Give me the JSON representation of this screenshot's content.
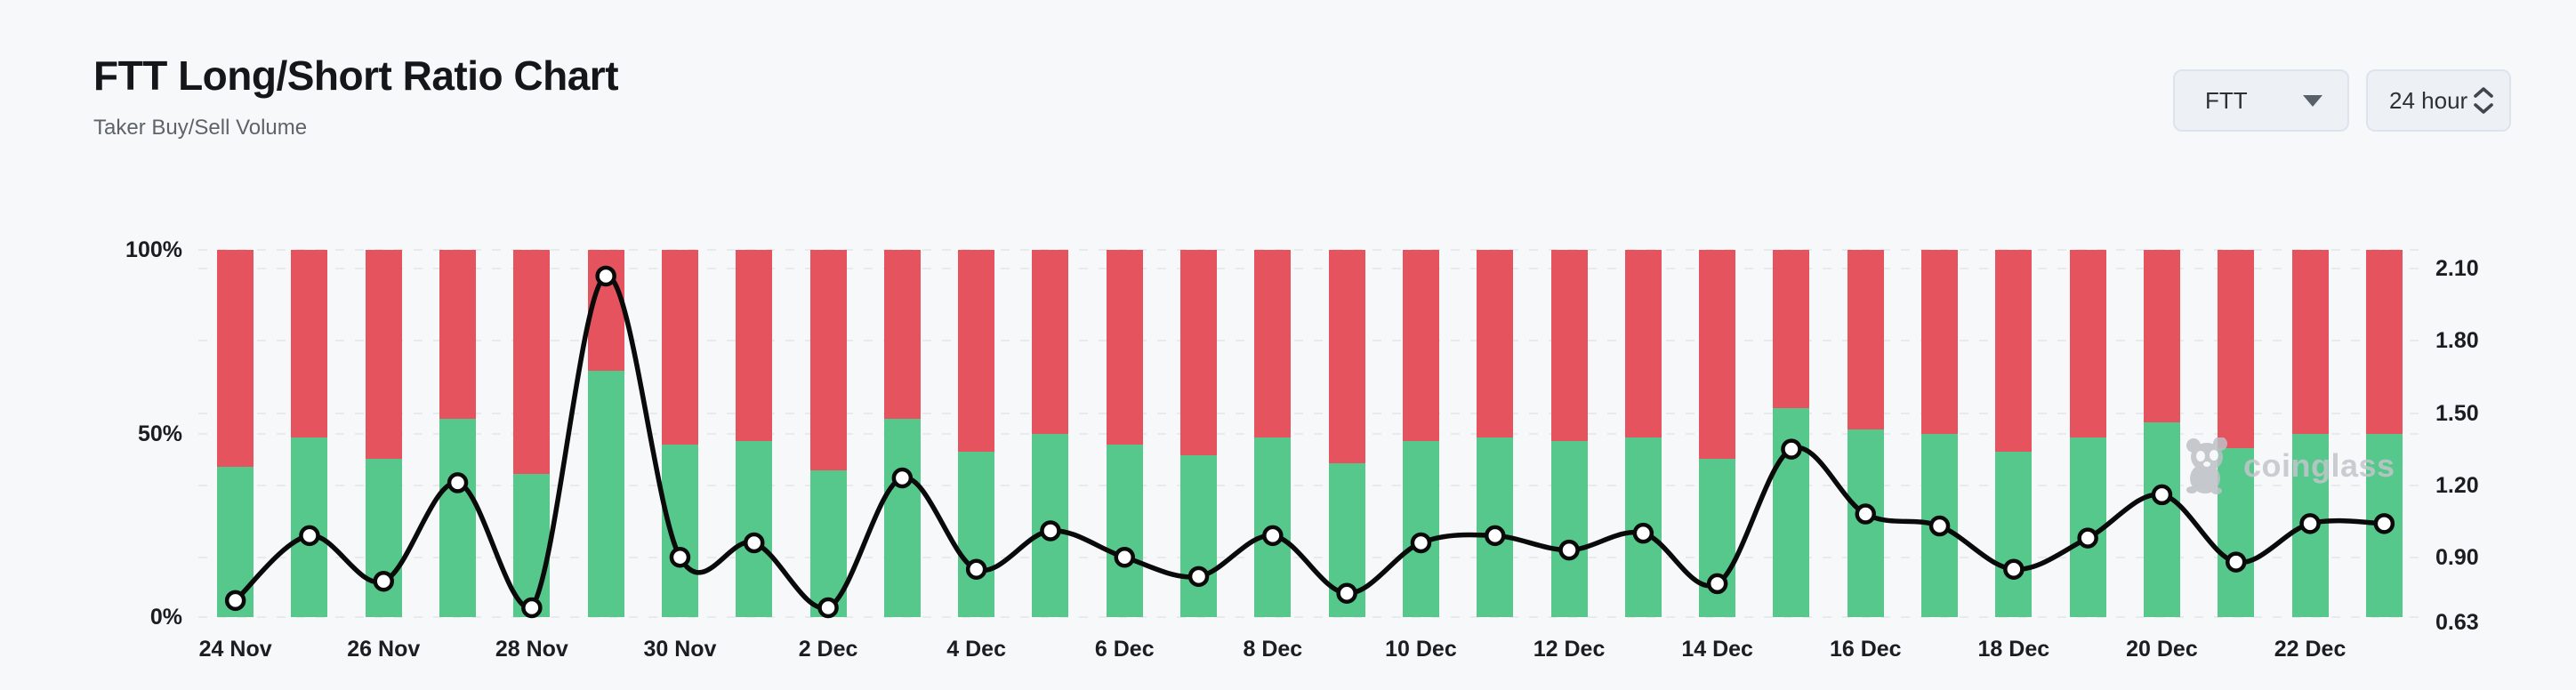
{
  "header": {
    "title": "FTT Long/Short Ratio Chart",
    "subtitle": "Taker Buy/Sell Volume"
  },
  "controls": {
    "symbol_select": {
      "value": "FTT"
    },
    "interval_select": {
      "value": "24 hour"
    }
  },
  "watermark": {
    "text": "coinglass"
  },
  "colors": {
    "buy_green": "#57c88b",
    "sell_red": "#e5545e",
    "line_black": "#0a0a0a",
    "marker_fill": "#ffffff",
    "background": "#f7f8f9",
    "watermark_gray": "#c2c5ca"
  },
  "chart_data": {
    "type": "bar",
    "subtype": "stacked-percent-bars-with-line-overlay",
    "categories": [
      "24 Nov",
      "25 Nov",
      "26 Nov",
      "27 Nov",
      "28 Nov",
      "29 Nov",
      "30 Nov",
      "1 Dec",
      "2 Dec",
      "3 Dec",
      "4 Dec",
      "5 Dec",
      "6 Dec",
      "7 Dec",
      "8 Dec",
      "9 Dec",
      "10 Dec",
      "11 Dec",
      "12 Dec",
      "13 Dec",
      "14 Dec",
      "15 Dec",
      "16 Dec",
      "17 Dec",
      "18 Dec",
      "19 Dec",
      "20 Dec",
      "21 Dec",
      "22 Dec",
      "23 Dec"
    ],
    "series": [
      {
        "name": "Taker Buy %",
        "type": "bar",
        "stack": "bottom",
        "color": "#57c88b",
        "values": [
          41,
          49,
          43,
          54,
          39,
          67,
          47,
          48,
          40,
          54,
          45,
          50,
          47,
          44,
          49,
          42,
          48,
          49,
          48,
          49,
          43,
          57,
          51,
          50,
          45,
          49,
          53,
          46,
          50,
          50
        ]
      },
      {
        "name": "Taker Sell %",
        "type": "bar",
        "stack": "top",
        "color": "#e5545e",
        "values": [
          59,
          51,
          57,
          46,
          61,
          33,
          53,
          52,
          60,
          46,
          55,
          50,
          53,
          56,
          51,
          58,
          52,
          51,
          52,
          51,
          57,
          43,
          49,
          50,
          55,
          51,
          47,
          54,
          50,
          50
        ]
      },
      {
        "name": "Long/Short Ratio",
        "type": "line",
        "color": "#0a0a0a",
        "values": [
          0.72,
          0.99,
          0.8,
          1.21,
          0.69,
          2.07,
          0.9,
          0.96,
          0.69,
          1.23,
          0.85,
          1.01,
          0.9,
          0.82,
          0.99,
          0.75,
          0.96,
          0.99,
          0.93,
          1.0,
          0.79,
          1.35,
          1.08,
          1.03,
          0.85,
          0.98,
          1.16,
          0.88,
          1.04,
          1.04
        ]
      }
    ],
    "left_axis": {
      "ticks": [
        {
          "label": "100%",
          "pct": 100
        },
        {
          "label": "50%",
          "pct": 50
        },
        {
          "label": "0%",
          "pct": 0
        }
      ],
      "min": 0,
      "max": 100
    },
    "right_axis": {
      "ticks": [
        {
          "label": "2.10",
          "value": 2.1
        },
        {
          "label": "1.80",
          "value": 1.8
        },
        {
          "label": "1.50",
          "value": 1.5
        },
        {
          "label": "1.20",
          "value": 1.2
        },
        {
          "label": "0.90",
          "value": 0.9
        },
        {
          "label": "0.63",
          "value": 0.63
        }
      ],
      "top_value": 2.179,
      "bottom_value": 0.651
    },
    "x_ticks": [
      {
        "label": "24 Nov",
        "bar_index": 0
      },
      {
        "label": "26 Nov",
        "bar_index": 2
      },
      {
        "label": "28 Nov",
        "bar_index": 4
      },
      {
        "label": "30 Nov",
        "bar_index": 6
      },
      {
        "label": "2 Dec",
        "bar_index": 8
      },
      {
        "label": "4 Dec",
        "bar_index": 10
      },
      {
        "label": "6 Dec",
        "bar_index": 12
      },
      {
        "label": "8 Dec",
        "bar_index": 14
      },
      {
        "label": "10 Dec",
        "bar_index": 16
      },
      {
        "label": "12 Dec",
        "bar_index": 18
      },
      {
        "label": "14 Dec",
        "bar_index": 20
      },
      {
        "label": "16 Dec",
        "bar_index": 22
      },
      {
        "label": "18 Dec",
        "bar_index": 24
      },
      {
        "label": "20 Dec",
        "bar_index": 26
      },
      {
        "label": "22 Dec",
        "bar_index": 28
      }
    ],
    "grid": "horizontal-dashed",
    "legend": "none"
  }
}
